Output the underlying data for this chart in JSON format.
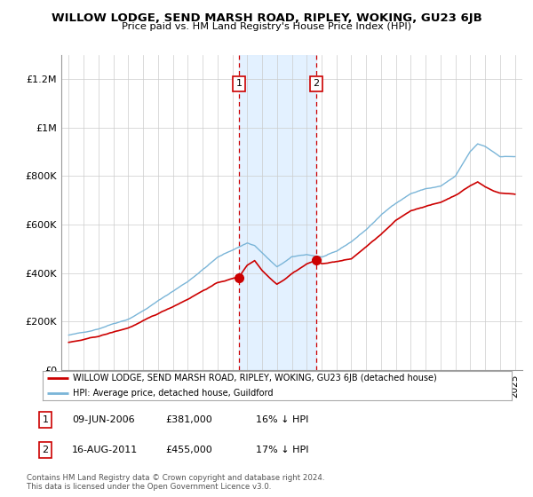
{
  "title": "WILLOW LODGE, SEND MARSH ROAD, RIPLEY, WOKING, GU23 6JB",
  "subtitle": "Price paid vs. HM Land Registry's House Price Index (HPI)",
  "red_label": "WILLOW LODGE, SEND MARSH ROAD, RIPLEY, WOKING, GU23 6JB (detached house)",
  "blue_label": "HPI: Average price, detached house, Guildford",
  "sale1_date": "09-JUN-2006",
  "sale1_price": "£381,000",
  "sale1_hpi": "16% ↓ HPI",
  "sale2_date": "16-AUG-2011",
  "sale2_price": "£455,000",
  "sale2_hpi": "17% ↓ HPI",
  "footnote": "Contains HM Land Registry data © Crown copyright and database right 2024.\nThis data is licensed under the Open Government Licence v3.0.",
  "red_color": "#cc0000",
  "blue_color": "#7ab5d8",
  "shade_color": "#ddeeff",
  "vline_color": "#cc0000",
  "background_color": "#ffffff",
  "grid_color": "#cccccc",
  "ylim": [
    0,
    1300000
  ],
  "yticks": [
    0,
    200000,
    400000,
    600000,
    800000,
    1000000,
    1200000
  ],
  "ytick_labels": [
    "£0",
    "£200K",
    "£400K",
    "£600K",
    "£800K",
    "£1M",
    "£1.2M"
  ],
  "sale1_year": 2006.44,
  "sale2_year": 2011.62,
  "sale1_red_val": 381000,
  "sale2_red_val": 455000,
  "blue_waypoints_x": [
    1995,
    1996,
    1997,
    1998,
    1999,
    2000,
    2001,
    2002,
    2003,
    2004,
    2005,
    2006,
    2007,
    2007.5,
    2008,
    2008.5,
    2009,
    2009.5,
    2010,
    2011,
    2012,
    2013,
    2014,
    2015,
    2016,
    2017,
    2018,
    2019,
    2020,
    2021,
    2022,
    2022.5,
    2023,
    2023.5,
    2024,
    2025
  ],
  "blue_waypoints_y": [
    145000,
    155000,
    172000,
    195000,
    215000,
    250000,
    290000,
    330000,
    370000,
    420000,
    470000,
    500000,
    530000,
    520000,
    490000,
    460000,
    430000,
    450000,
    470000,
    480000,
    470000,
    490000,
    530000,
    580000,
    640000,
    690000,
    730000,
    750000,
    760000,
    800000,
    900000,
    930000,
    920000,
    900000,
    880000,
    880000
  ],
  "red_waypoints_x": [
    1995,
    1996,
    1997,
    1998,
    1999,
    2000,
    2001,
    2002,
    2003,
    2004,
    2005,
    2006,
    2006.44,
    2007,
    2007.5,
    2008,
    2008.5,
    2009,
    2009.5,
    2010,
    2011,
    2011.62,
    2012,
    2013,
    2014,
    2015,
    2016,
    2017,
    2018,
    2019,
    2020,
    2021,
    2022,
    2022.5,
    2023,
    2023.5,
    2024,
    2025
  ],
  "red_waypoints_y": [
    115000,
    125000,
    138000,
    155000,
    172000,
    200000,
    228000,
    258000,
    290000,
    325000,
    358000,
    375000,
    381000,
    430000,
    450000,
    410000,
    380000,
    355000,
    375000,
    400000,
    440000,
    455000,
    440000,
    450000,
    460000,
    510000,
    560000,
    615000,
    655000,
    675000,
    690000,
    720000,
    760000,
    775000,
    755000,
    740000,
    730000,
    725000
  ]
}
